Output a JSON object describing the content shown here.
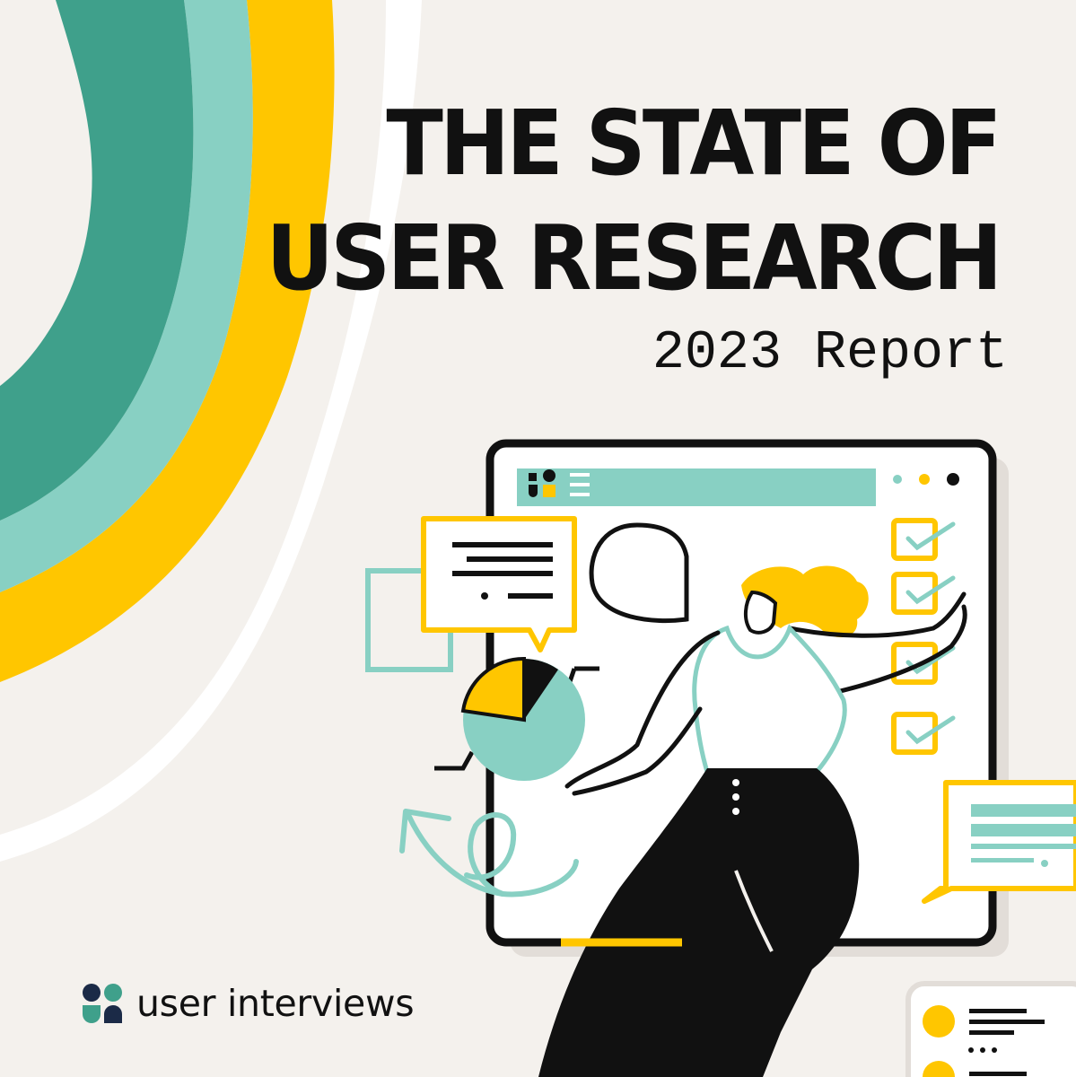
{
  "title": {
    "line1": "THE STATE OF",
    "line2": "USER RESEARCH",
    "subtitle": "2023 Report"
  },
  "brand": {
    "name": "user interviews",
    "logo": "user-interviews-logo-icon"
  },
  "colors": {
    "background": "#F4F1ED",
    "dark_green": "#3FA08B",
    "teal": "#88D0C3",
    "yellow": "#FFC600",
    "ink": "#111111",
    "navy": "#1B2A47"
  },
  "icons": [
    "rainbow-arcs",
    "browser-window-illustration",
    "woman-illustration",
    "pie-chart-icon",
    "speech-bubble-icon",
    "checkbox-icon",
    "cycle-arrow-icon"
  ]
}
